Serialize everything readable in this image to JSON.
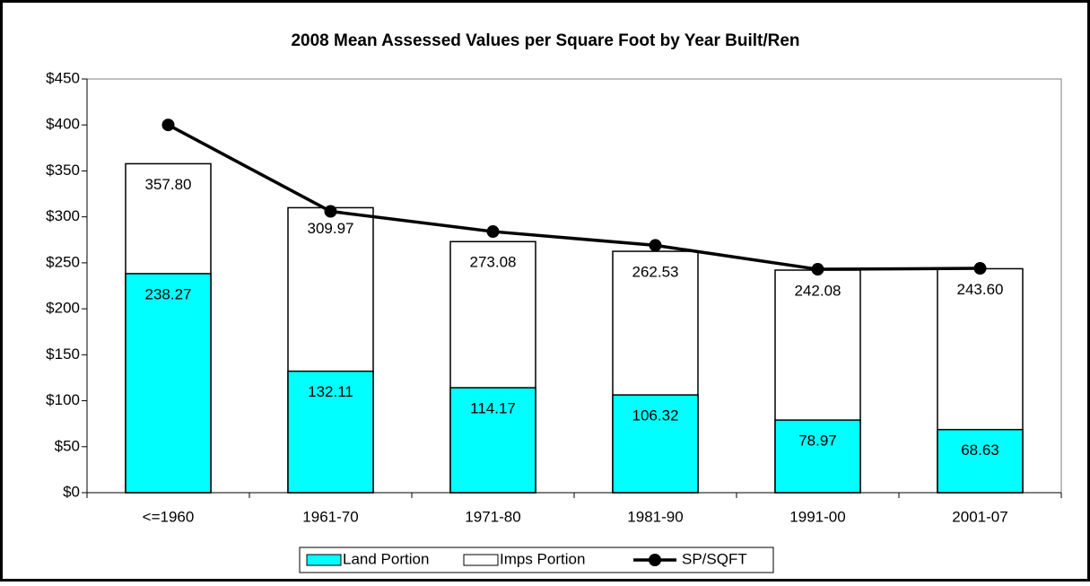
{
  "chart_data": {
    "type": "bar",
    "title": "2008 Mean Assessed Values per Square Foot by Year Built/Ren",
    "categories": [
      "<=1960",
      "1961-70",
      "1971-80",
      "1981-90",
      "1991-00",
      "2001-07"
    ],
    "series": [
      {
        "name": "Imps Portion",
        "color": "#ffffff",
        "values": [
          357.8,
          309.97,
          273.08,
          262.53,
          242.08,
          243.6
        ],
        "value_labels": [
          "357.80",
          "309.97",
          "273.08",
          "262.53",
          "242.08",
          "243.60"
        ]
      },
      {
        "name": "Land Portion",
        "color": "#00ffff",
        "values": [
          238.27,
          132.11,
          114.17,
          106.32,
          78.97,
          68.63
        ],
        "value_labels": [
          "238.27",
          "132.11",
          "114.17",
          "106.32",
          "78.97",
          "68.63"
        ]
      },
      {
        "name": "SP/SQFT",
        "type": "line",
        "color": "#000000",
        "values": [
          400,
          306,
          284,
          269,
          243,
          244
        ]
      }
    ],
    "ylim": [
      0,
      450
    ],
    "yticks": [
      {
        "value": 0,
        "label": "$0"
      },
      {
        "value": 50,
        "label": "$50"
      },
      {
        "value": 100,
        "label": "$100"
      },
      {
        "value": 150,
        "label": "$150"
      },
      {
        "value": 200,
        "label": "$200"
      },
      {
        "value": 250,
        "label": "$250"
      },
      {
        "value": 300,
        "label": "$300"
      },
      {
        "value": 350,
        "label": "$350"
      },
      {
        "value": 400,
        "label": "$400"
      },
      {
        "value": 450,
        "label": "$450"
      }
    ],
    "grid": false,
    "legend": "bottom"
  }
}
